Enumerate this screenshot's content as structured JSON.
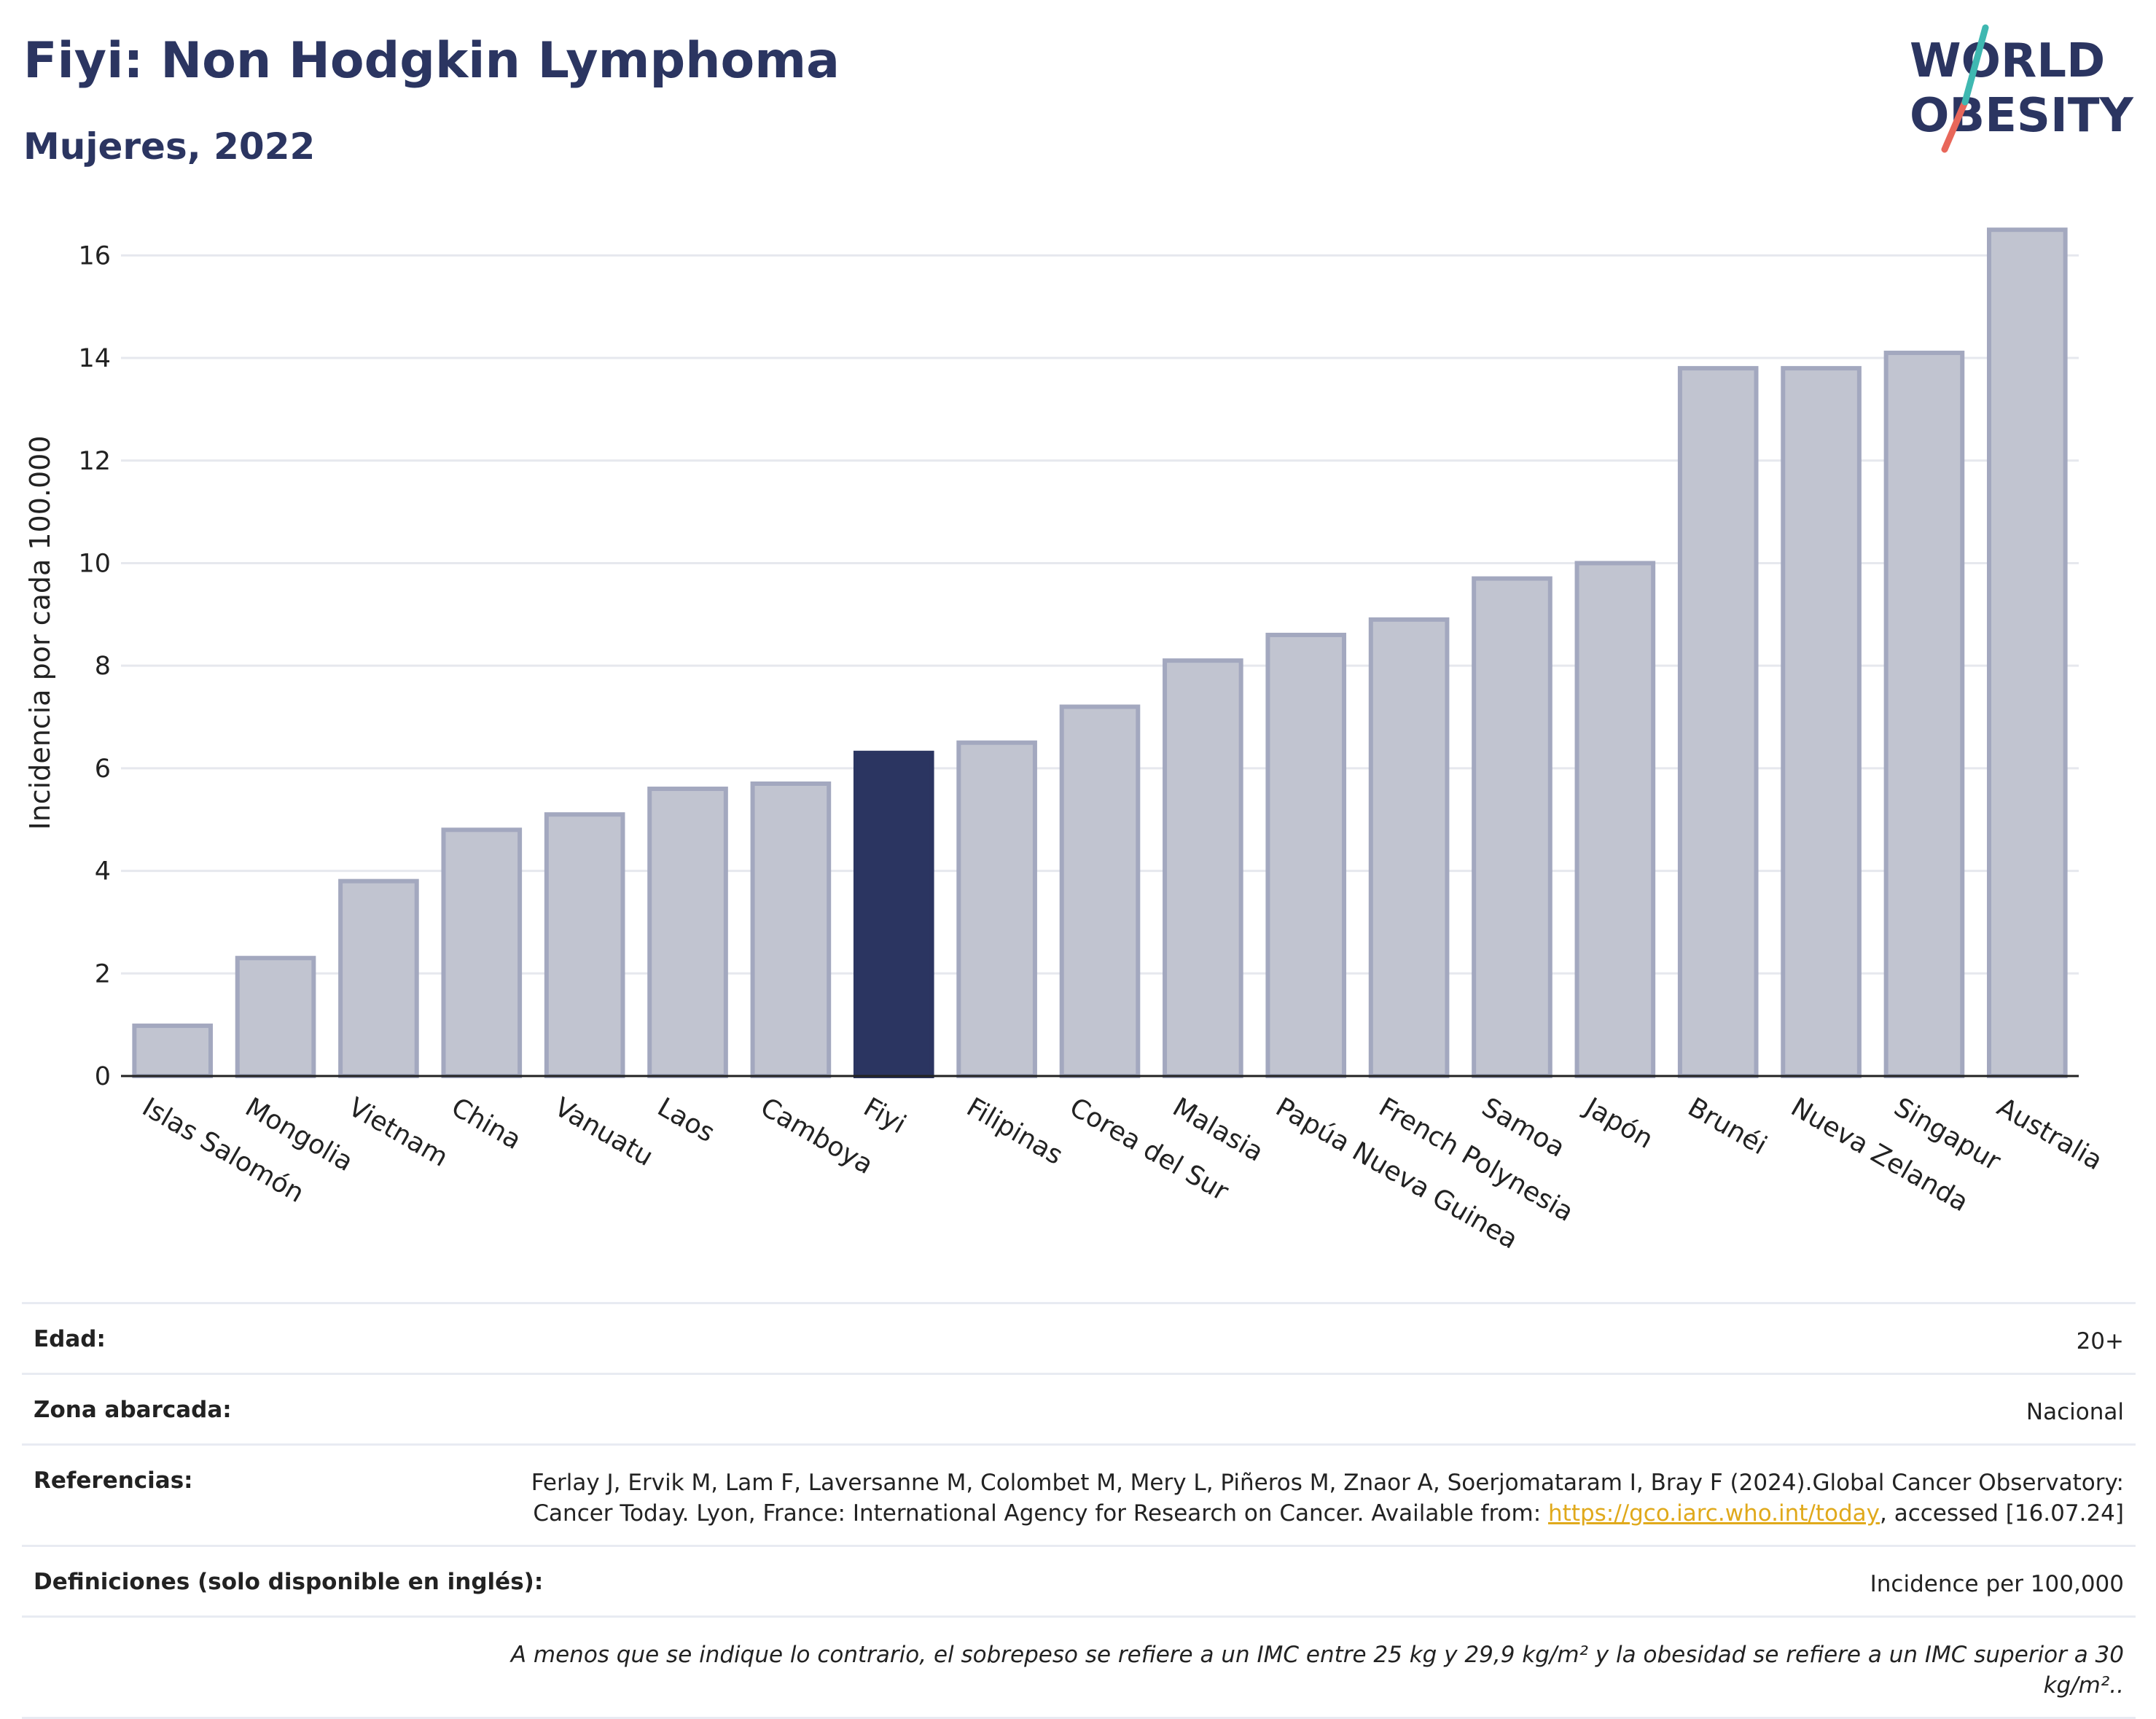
{
  "header": {
    "title": "Fiyi: Non Hodgkin Lymphoma",
    "subtitle": "Mujeres, 2022"
  },
  "logo": {
    "line1": "WORLD",
    "line2": "OBESITY",
    "colors": {
      "text": "#2b3561",
      "slash_teal": "#3fb8b1",
      "slash_coral": "#e8675a"
    }
  },
  "colors": {
    "bar_default": "#c1c4d0",
    "bar_default_outline": "#a3a8bf",
    "bar_highlight": "#2b3561",
    "grid": "#e6e8ee",
    "axis": "#222222"
  },
  "chart_data": {
    "type": "bar",
    "title": "Fiyi: Non Hodgkin Lymphoma",
    "subtitle": "Mujeres, 2022",
    "xlabel": "",
    "ylabel": "Incidencia por cada 100.000",
    "ylim": [
      0,
      17
    ],
    "yticks": [
      0,
      2,
      4,
      6,
      8,
      10,
      12,
      14,
      16
    ],
    "grid": true,
    "highlight": "Fiyi",
    "categories": [
      "Islas Salomón",
      "Mongolia",
      "Vietnam",
      "China",
      "Vanuatu",
      "Laos",
      "Camboya",
      "Fiyi",
      "Filipinas",
      "Corea del Sur",
      "Malasia",
      "Papúa Nueva Guinea",
      "French Polynesia",
      "Samoa",
      "Japón",
      "Brunéi",
      "Nueva Zelanda",
      "Singapur",
      "Australia"
    ],
    "values": [
      0.98,
      2.3,
      3.8,
      4.8,
      5.1,
      5.6,
      5.7,
      6.3,
      6.5,
      7.2,
      8.1,
      8.6,
      8.9,
      9.7,
      10.0,
      13.8,
      13.8,
      14.1,
      16.5
    ]
  },
  "meta": {
    "age_label": "Edad:",
    "age_value": "20+",
    "zone_label": "Zona abarcada:",
    "zone_value": "Nacional",
    "refs_label": "Referencias:",
    "refs_text": "Ferlay J, Ervik M, Lam F, Laversanne M, Colombet M, Mery L, Piñeros M, Znaor A, Soerjomataram I, Bray F (2024).Global Cancer Observatory: Cancer Today. Lyon, France: International Agency for Research on Cancer. Available from:",
    "refs_link": "https://gco.iarc.who.int/today",
    "refs_suffix": ", accessed [16.07.24]",
    "defs_label": "Definiciones (solo disponible en inglés):",
    "defs_value": "Incidence per 100,000",
    "note": "A menos que se indique lo contrario, el sobrepeso se refiere a un IMC entre 25 kg y 29,9 kg/m² y la obesidad se refiere a un IMC superior a 30 kg/m².."
  }
}
